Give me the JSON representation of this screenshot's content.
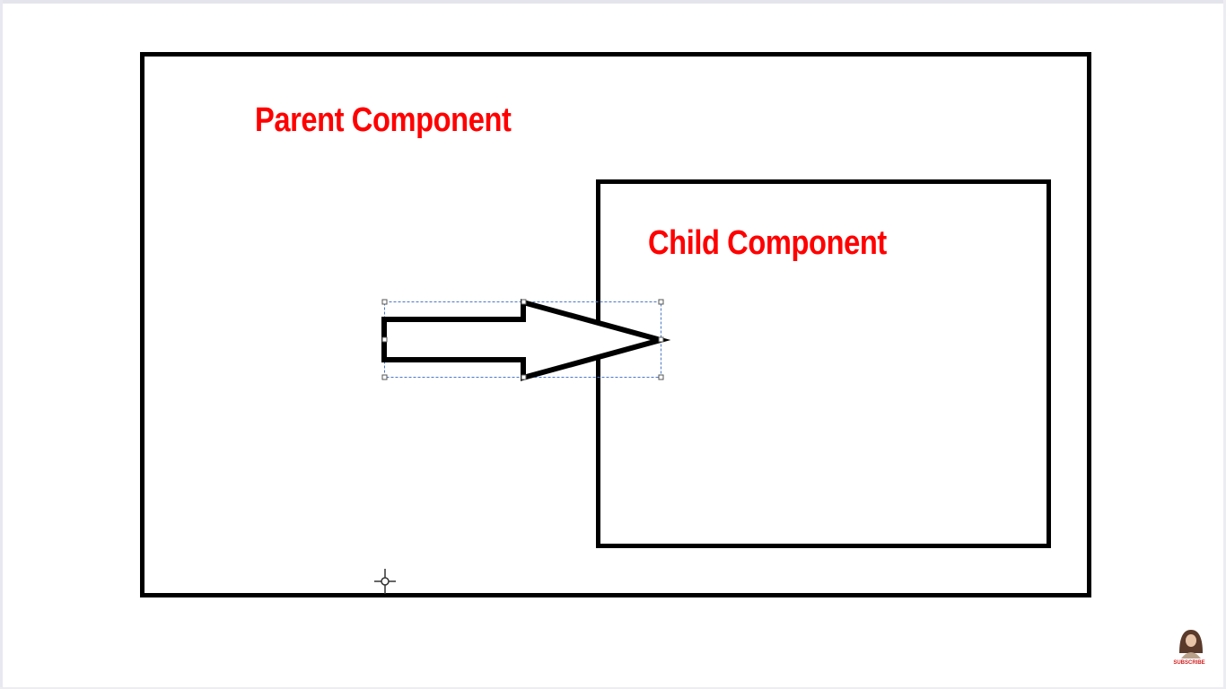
{
  "diagram": {
    "parent_label": "Parent Component",
    "child_label": "Child Component"
  },
  "colors": {
    "label": "#ff0000",
    "border": "#000000",
    "selection": "#4a78c8"
  },
  "badge": {
    "subscribe_label": "SUBSCRIBE",
    "subscribe_color": "#d21f1f"
  }
}
